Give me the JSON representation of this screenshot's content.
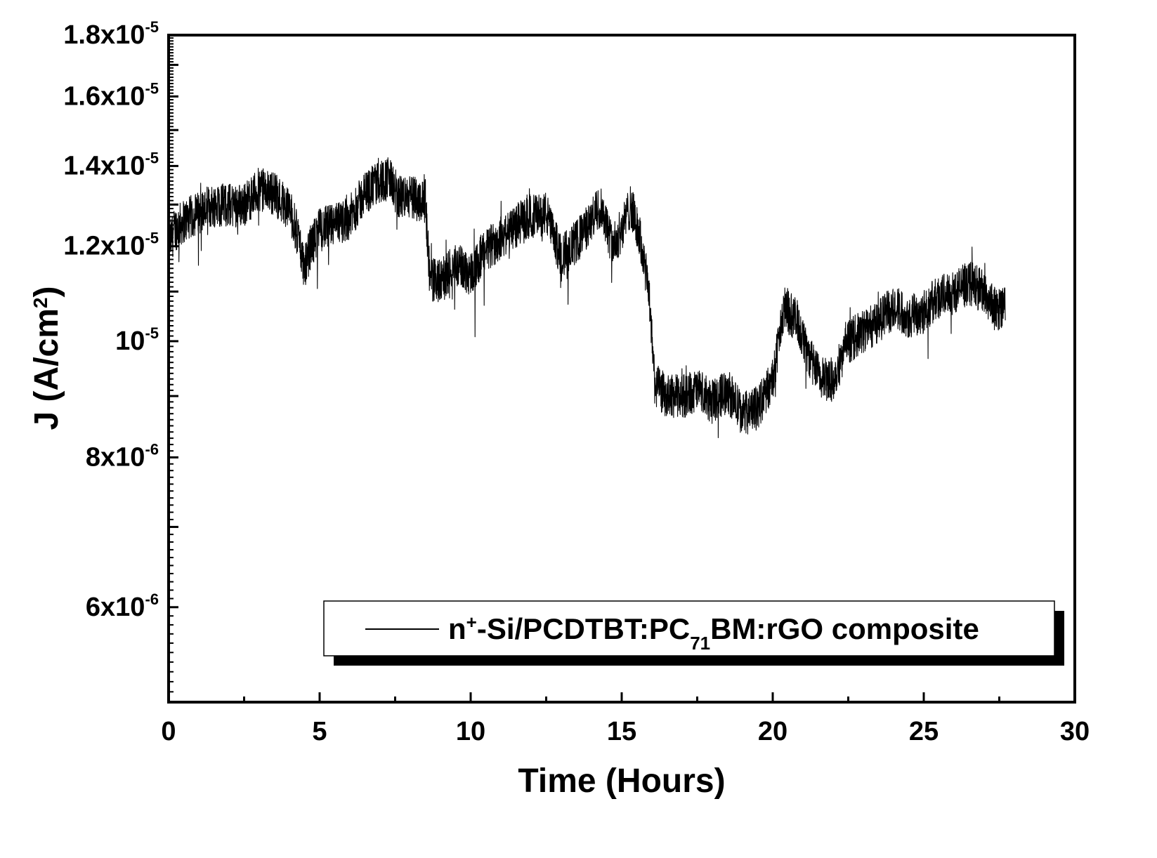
{
  "chart_data": {
    "type": "line",
    "xlabel": "Time (Hours)",
    "ylabel": {
      "prefix": "J (A/cm",
      "sup": "2",
      "suffix": ")"
    },
    "xlim": [
      0,
      30
    ],
    "ylim": [
      5e-06,
      1.8e-05
    ],
    "yscale": "log",
    "grid": false,
    "legend_position": "bottom-center",
    "x_ticks": [
      0,
      5,
      10,
      15,
      20,
      25,
      30
    ],
    "x_tick_labels": [
      "0",
      "5",
      "10",
      "15",
      "20",
      "25",
      "30"
    ],
    "y_ticks": [
      {
        "value": 6e-06,
        "mantissa": "6x10",
        "exp": "-6"
      },
      {
        "value": 8e-06,
        "mantissa": "8x10",
        "exp": "-6"
      },
      {
        "value": 1e-05,
        "mantissa": "10",
        "exp": "-5"
      },
      {
        "value": 1.2e-05,
        "mantissa": "1.2x10",
        "exp": "-5"
      },
      {
        "value": 1.4e-05,
        "mantissa": "1.4x10",
        "exp": "-5"
      },
      {
        "value": 1.6e-05,
        "mantissa": "1.6x10",
        "exp": "-5"
      },
      {
        "value": 1.8e-05,
        "mantissa": "1.8x10",
        "exp": "-5"
      }
    ],
    "series": [
      {
        "name": {
          "p1": "n",
          "sup": "+",
          "p2": "-Si/PCDTBT:PC",
          "sub": "71",
          "p3": "BM:rGO composite"
        },
        "color": "#000000",
        "x": [
          0,
          0.2,
          0.5,
          1,
          1.5,
          2,
          2.5,
          3,
          3.5,
          4,
          4.3,
          4.5,
          4.7,
          5,
          5.5,
          6,
          6.5,
          7,
          7.3,
          7.6,
          8,
          8.5,
          8.65,
          9,
          9.5,
          10,
          10.5,
          11,
          11.5,
          12,
          12.5,
          12.75,
          13,
          13.5,
          14,
          14.3,
          14.7,
          15,
          15.3,
          15.6,
          15.9,
          16.1,
          16.5,
          17,
          17.5,
          18,
          18.5,
          19,
          19.5,
          20,
          20.4,
          20.8,
          21.2,
          21.6,
          22,
          22.5,
          23,
          23.5,
          24,
          24.5,
          25,
          25.5,
          26,
          26.5,
          27,
          27.4,
          27.7
        ],
        "y": [
          1.2e-05,
          1.24e-05,
          1.26e-05,
          1.28e-05,
          1.3e-05,
          1.3e-05,
          1.3e-05,
          1.34e-05,
          1.33e-05,
          1.29e-05,
          1.22e-05,
          1.15e-05,
          1.2e-05,
          1.24e-05,
          1.25e-05,
          1.27e-05,
          1.33e-05,
          1.36e-05,
          1.37e-05,
          1.32e-05,
          1.32e-05,
          1.31e-05,
          1.13e-05,
          1.12e-05,
          1.16e-05,
          1.14e-05,
          1.19e-05,
          1.22e-05,
          1.25e-05,
          1.27e-05,
          1.28e-05,
          1.22e-05,
          1.18e-05,
          1.21e-05,
          1.26e-05,
          1.3e-05,
          1.2e-05,
          1.24e-05,
          1.3e-05,
          1.22e-05,
          1.1e-05,
          9.2e-06,
          9e-06,
          9e-06,
          9.1e-06,
          8.9e-06,
          9.1e-06,
          8.7e-06,
          8.8e-06,
          9.3e-06,
          1.07e-05,
          1.04e-05,
          9.7e-06,
          9.3e-06,
          9.3e-06,
          1e-05,
          1.02e-05,
          1.04e-05,
          1.07e-05,
          1.05e-05,
          1.06e-05,
          1.09e-05,
          1.1e-05,
          1.12e-05,
          1.1e-05,
          1.06e-05,
          1.08e-05
        ]
      }
    ]
  }
}
